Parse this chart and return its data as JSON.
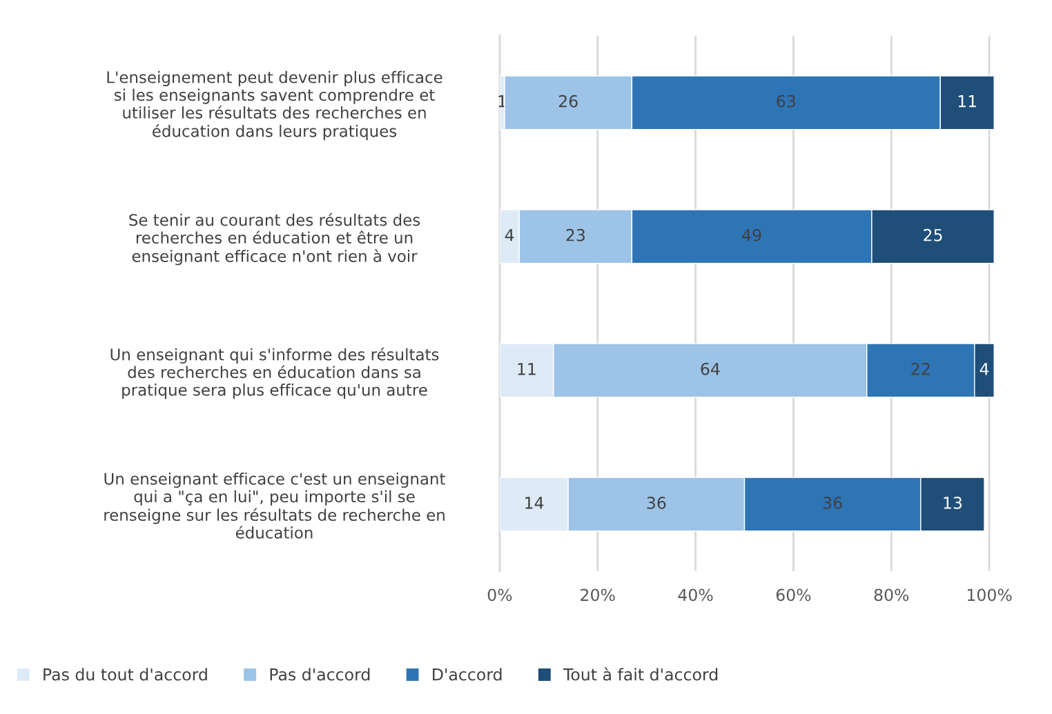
{
  "chart_data": {
    "type": "bar",
    "orientation": "horizontal",
    "stacked": true,
    "data_labels": true,
    "grid": "x",
    "legend": "bottom",
    "categories": [
      "L'enseignement peut devenir plus efficace\nsi les enseignants savent comprendre et\nutiliser les résultats des recherches en\néducation dans leurs pratiques",
      "Se tenir au courant des résultats des\nrecherches en éducation et être un\nenseignant efficace n'ont rien à voir",
      "Un enseignant qui s'informe des résultats\ndes recherches en éducation dans sa\npratique sera plus efficace qu'un autre",
      "Un enseignant efficace c'est un enseignant\nqui a \"ça en lui\", peu importe s'il se\nrenseigne sur les résultats de recherche en\néducation"
    ],
    "series": [
      {
        "name": "Pas du tout d'accord",
        "color": "#deebf7",
        "values": [
          1,
          4,
          11,
          14
        ]
      },
      {
        "name": "Pas d'accord",
        "color": "#9dc3e6",
        "values": [
          26,
          23,
          64,
          36
        ]
      },
      {
        "name": "D'accord",
        "color": "#2e75b6",
        "values": [
          63,
          49,
          22,
          36
        ]
      },
      {
        "name": "Tout à fait d'accord",
        "color": "#1f4e79",
        "values": [
          11,
          25,
          4,
          13
        ]
      }
    ],
    "xlim": [
      0,
      101
    ],
    "xticks": [
      {
        "value": 0,
        "label": "0%"
      },
      {
        "value": 20,
        "label": "20%"
      },
      {
        "value": 40,
        "label": "40%"
      },
      {
        "value": 60,
        "label": "60%"
      },
      {
        "value": 80,
        "label": "80%"
      },
      {
        "value": 100,
        "label": "100%"
      }
    ]
  }
}
